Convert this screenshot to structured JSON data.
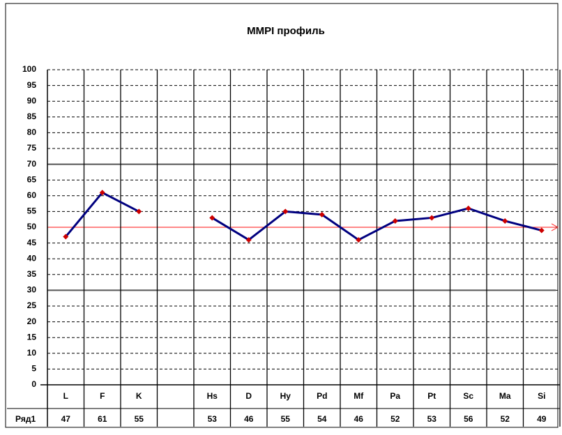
{
  "chart_data": {
    "type": "line",
    "title": "MMPI профиль",
    "categories": [
      "L",
      "F",
      "K",
      null,
      "Hs",
      "D",
      "Hy",
      "Pd",
      "Mf",
      "Pa",
      "Pt",
      "Sc",
      "Ma",
      "Si"
    ],
    "series": [
      {
        "name": "Ряд1",
        "color": "#00007f",
        "marker_color": "#cc0000",
        "values": [
          47,
          61,
          55,
          null,
          53,
          46,
          55,
          54,
          46,
          52,
          53,
          56,
          52,
          49
        ]
      }
    ],
    "ylim": [
      0,
      100
    ],
    "yticks": [
      0,
      5,
      10,
      15,
      20,
      25,
      30,
      35,
      40,
      45,
      50,
      55,
      60,
      65,
      70,
      75,
      80,
      85,
      90,
      95,
      100
    ],
    "grid": true,
    "reference_lines": [
      {
        "value": 70,
        "color": "#555555"
      },
      {
        "value": 30,
        "color": "#555555"
      },
      {
        "value": 50,
        "color": "#ff4040"
      }
    ]
  }
}
